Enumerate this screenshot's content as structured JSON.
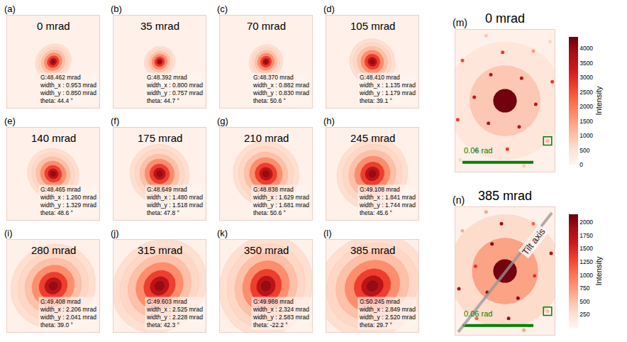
{
  "chart_data": [
    {
      "type": "spot",
      "label": "(a)",
      "title": "0 mrad",
      "width_x": 0.953,
      "width_y": 0.85,
      "theta": 44.4,
      "xlim": [
        -7,
        7
      ],
      "ylim": [
        -7,
        7
      ],
      "tick_labels": false,
      "texts": [
        "G:48.462 mrad",
        "width_x : 0.953 mrad",
        "width_y : 0.850 mrad",
        "theta: 44.4 °"
      ]
    },
    {
      "type": "spot",
      "label": "(b)",
      "title": "35 mrad",
      "width_x": 0.8,
      "width_y": 0.757,
      "theta": 44.7,
      "xlim": [
        -7,
        7
      ],
      "ylim": [
        -7,
        7
      ],
      "tick_labels": false,
      "texts": [
        "G:48.392 mrad",
        "width_x : 0.800 mrad",
        "width_y : 0.757 mrad",
        "theta: 44.7 °"
      ]
    },
    {
      "type": "spot",
      "label": "(c)",
      "title": "70 mrad",
      "width_x": 0.882,
      "width_y": 0.83,
      "theta": 50.6,
      "xlim": [
        -7,
        7
      ],
      "ylim": [
        -7,
        7
      ],
      "tick_labels": false,
      "texts": [
        "G:48.370 mrad",
        "width_x : 0.882 mrad",
        "width_y : 0.830 mrad",
        "theta: 50.6 °"
      ]
    },
    {
      "type": "spot",
      "label": "(d)",
      "title": "105 mrad",
      "width_x": 1.135,
      "width_y": 1.179,
      "theta": 39.1,
      "xlim": [
        -7,
        7
      ],
      "ylim": [
        -7,
        7
      ],
      "tick_labels": false,
      "texts": [
        "G:48.410 mrad",
        "width_x : 1.135 mrad",
        "width_y : 1.179 mrad",
        "theta: 39.1 °"
      ]
    },
    {
      "type": "spot",
      "label": "(e)",
      "title": "140 mrad",
      "width_x": 1.26,
      "width_y": 1.329,
      "theta": 48.6,
      "xlim": [
        -7,
        7
      ],
      "ylim": [
        -7,
        7
      ],
      "tick_labels": false,
      "texts": [
        "G:48.465 mrad",
        "width_x : 1.260 mrad",
        "width_y : 1.329 mrad",
        "theta: 48.6 °"
      ]
    },
    {
      "type": "spot",
      "label": "(f)",
      "title": "175 mrad",
      "width_x": 1.48,
      "width_y": 1.518,
      "theta": 47.8,
      "xlim": [
        -7,
        7
      ],
      "ylim": [
        -7,
        7
      ],
      "tick_labels": false,
      "texts": [
        "G:48.649 mrad",
        "width_x : 1.480 mrad",
        "width_y : 1.518 mrad",
        "theta: 47.8 °"
      ]
    },
    {
      "type": "spot",
      "label": "(g)",
      "title": "210 mrad",
      "width_x": 1.629,
      "width_y": 1.681,
      "theta": 50.6,
      "xlim": [
        -7,
        7
      ],
      "ylim": [
        -7,
        7
      ],
      "tick_labels": false,
      "texts": [
        "G:48.838 mrad",
        "width_x : 1.629 mrad",
        "width_y : 1.681 mrad",
        "theta: 50.6 °"
      ]
    },
    {
      "type": "spot",
      "label": "(h)",
      "title": "245 mrad",
      "width_x": 1.841,
      "width_y": 1.744,
      "theta": 45.6,
      "xlim": [
        -7,
        7
      ],
      "ylim": [
        -7,
        7
      ],
      "tick_labels": false,
      "texts": [
        "G:49.108 mrad",
        "width_x : 1.841 mrad",
        "width_y : 1.744 mrad",
        "theta: 45.6 °"
      ]
    },
    {
      "type": "spot",
      "label": "(i)",
      "title": "280 mrad",
      "width_x": 2.206,
      "width_y": 2.041,
      "theta": 39.0,
      "xlim": [
        -7,
        7
      ],
      "ylim": [
        -7,
        7
      ],
      "tick_labels": false,
      "texts": [
        "G:49.408 mrad",
        "width_x : 2.206 mrad",
        "width_y : 2.041 mrad",
        "theta: 39.0 °"
      ]
    },
    {
      "type": "spot",
      "label": "(j)",
      "title": "315 mrad",
      "width_x": 2.525,
      "width_y": 2.228,
      "theta": 42.3,
      "xlim": [
        -7,
        7
      ],
      "ylim": [
        -7,
        7
      ],
      "tick_labels": false,
      "texts": [
        "G:49.603 mrad",
        "width_x : 2.525 mrad",
        "width_y : 2.228 mrad",
        "theta: 42.3 °"
      ]
    },
    {
      "type": "spot",
      "label": "(k)",
      "title": "350 mrad",
      "width_x": 2.324,
      "width_y": 2.583,
      "theta": -22.2,
      "xlim": [
        -7,
        7
      ],
      "ylim": [
        -7,
        7
      ],
      "tick_labels": false,
      "texts": [
        "G:49.988 mrad",
        "width_x : 2.324 mrad",
        "width_y : 2.583 mrad",
        "theta: -22.2 °"
      ]
    },
    {
      "type": "spot",
      "label": "(l)",
      "title": "385 mrad",
      "width_x": 2.849,
      "width_y": 2.52,
      "theta": 29.7,
      "xlim": [
        -7,
        7
      ],
      "ylim": [
        -7,
        7
      ],
      "tick_labels": false,
      "texts": [
        "G:50.245 mrad",
        "width_x : 2.849 mrad",
        "width_y : 2.520 mrad",
        "theta: 29.7 °"
      ]
    },
    {
      "type": "diffraction",
      "label": "(m)",
      "title": "0 mrad",
      "xlim": [
        -0.042,
        0.042
      ],
      "ylim": [
        -0.06,
        0.06
      ],
      "tick_labels": false,
      "colorbar_title": "Intensity",
      "color_range": [
        0,
        4400
      ],
      "color_ticks": [
        0,
        500,
        1000,
        1500,
        2000,
        2500,
        3000,
        3500,
        4000
      ],
      "center": {
        "radius": 0.01,
        "intensity": 4300
      },
      "halos": [
        {
          "radius": 0.05,
          "intensity": 400
        },
        {
          "radius": 0.03,
          "intensity": 900
        }
      ],
      "spots": [
        [
          0.014,
          0.019,
          3600
        ],
        [
          0.026,
          -0.003,
          3400
        ],
        [
          0.012,
          -0.022,
          3500
        ],
        [
          -0.014,
          -0.019,
          3600
        ],
        [
          -0.026,
          0.003,
          3400
        ],
        [
          -0.012,
          0.022,
          3500
        ],
        [
          0.04,
          0.016,
          2800
        ],
        [
          0.036,
          -0.034,
          1200
        ],
        [
          0.002,
          -0.041,
          2800
        ],
        [
          -0.04,
          -0.016,
          2800
        ],
        [
          -0.036,
          0.034,
          2600
        ],
        [
          -0.002,
          0.041,
          2800
        ],
        [
          0.024,
          0.042,
          1500
        ],
        [
          -0.024,
          -0.042,
          1500
        ],
        [
          0.038,
          0.05,
          700
        ],
        [
          -0.038,
          -0.05,
          700
        ],
        [
          0.016,
          -0.055,
          900
        ],
        [
          -0.016,
          0.055,
          900
        ]
      ],
      "box": {
        "x": 0.036,
        "y": -0.034,
        "color": "green"
      },
      "scale_bar": {
        "x": -0.036,
        "y": -0.052,
        "length": 0.06,
        "label": "0.06 rad",
        "color": "green"
      }
    },
    {
      "type": "diffraction",
      "label": "(n)",
      "title": "385 mrad",
      "xlim": [
        -0.042,
        0.042
      ],
      "ylim": [
        -0.054,
        0.054
      ],
      "tick_labels": false,
      "colorbar_title": "Intensity",
      "color_range": [
        0,
        2150
      ],
      "color_ticks": [
        250,
        500,
        750,
        1000,
        1250,
        1500,
        1750,
        2000
      ],
      "center": {
        "radius": 0.01,
        "intensity": 2100
      },
      "halos": [
        {
          "radius": 0.048,
          "intensity": 300
        },
        {
          "radius": 0.028,
          "intensity": 700
        }
      ],
      "spots": [
        [
          0.015,
          0.018,
          2000
        ],
        [
          0.025,
          -0.004,
          1400
        ],
        [
          0.011,
          -0.023,
          2000
        ],
        [
          -0.015,
          -0.018,
          2000
        ],
        [
          -0.025,
          0.004,
          1400
        ],
        [
          -0.011,
          0.023,
          2000
        ],
        [
          0.039,
          0.015,
          1800
        ],
        [
          0.036,
          -0.034,
          500
        ],
        [
          0.003,
          -0.04,
          1900
        ],
        [
          -0.039,
          -0.015,
          1800
        ],
        [
          -0.036,
          0.034,
          600
        ],
        [
          -0.003,
          0.04,
          1900
        ],
        [
          0.024,
          0.04,
          1100
        ],
        [
          -0.024,
          -0.04,
          1100
        ],
        [
          0.016,
          -0.05,
          700
        ],
        [
          -0.016,
          0.05,
          700
        ]
      ],
      "box": {
        "x": 0.036,
        "y": -0.034,
        "color": "green"
      },
      "scale_bar": {
        "x": -0.036,
        "y": -0.046,
        "length": 0.06,
        "label": "0.06 rad",
        "color": "green"
      },
      "tilt_axis": {
        "label": "Tilt axis"
      }
    }
  ]
}
